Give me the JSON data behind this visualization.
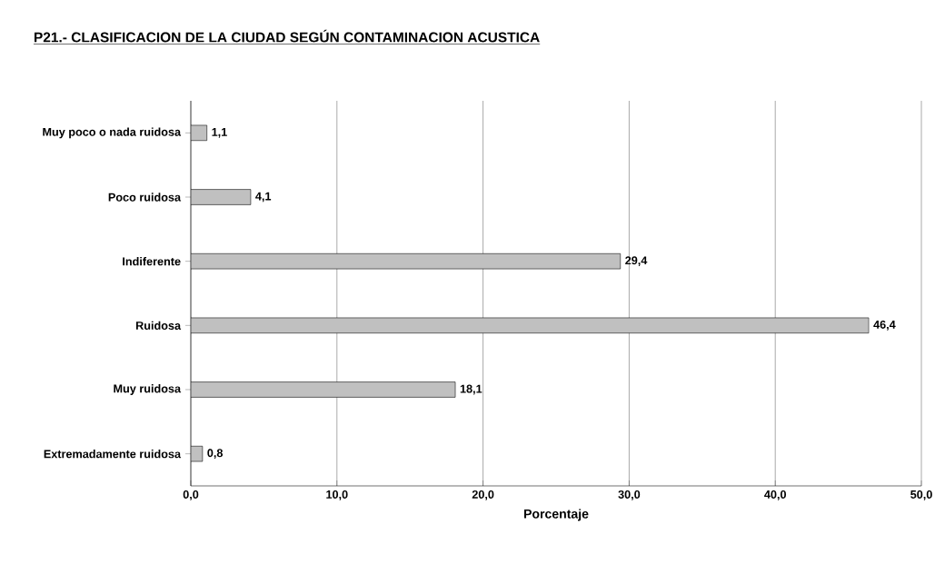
{
  "chart_data": {
    "type": "bar",
    "orientation": "horizontal",
    "title": "P21.- CLASIFICACION DE LA CIUDAD SEGÚN CONTAMINACION ACUSTICA",
    "xlabel": "Porcentaje",
    "categories": [
      "Muy poco o nada ruidosa",
      "Poco ruidosa",
      "Indiferente",
      "Ruidosa",
      "Muy ruidosa",
      "Extremadamente ruidosa"
    ],
    "values": [
      1.1,
      4.1,
      29.4,
      46.4,
      18.1,
      0.8
    ],
    "value_labels": [
      "1,1",
      "4,1",
      "29,4",
      "46,4",
      "18,1",
      "0,8"
    ],
    "color": "#c0c0c0",
    "xlim": [
      0,
      50
    ],
    "xticks": [
      {
        "value": 0,
        "label": "0,0"
      },
      {
        "value": 10,
        "label": "10,0"
      },
      {
        "value": 20,
        "label": "20,0"
      },
      {
        "value": 30,
        "label": "30,0"
      },
      {
        "value": 40,
        "label": "40,0"
      },
      {
        "value": 50,
        "label": "50,0"
      }
    ],
    "grid": "x"
  }
}
